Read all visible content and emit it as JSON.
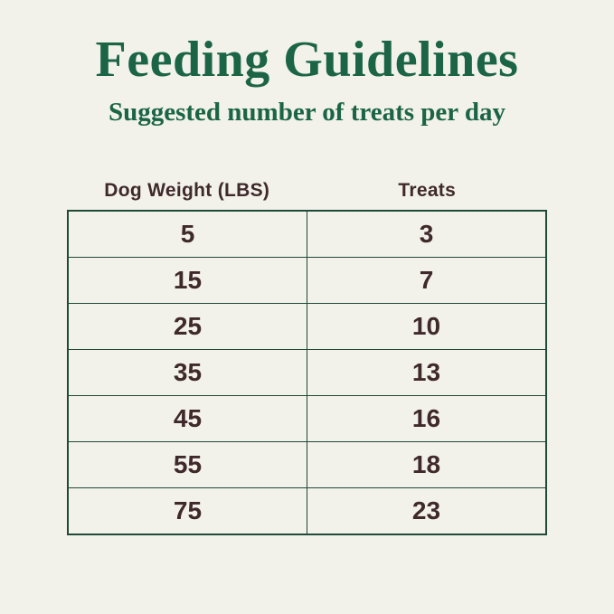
{
  "header": {
    "title": "Feeding Guidelines",
    "subtitle": "Suggested number of treats per day"
  },
  "table": {
    "columns": [
      "Dog Weight (LBS)",
      "Treats"
    ],
    "rows": [
      {
        "weight": "5",
        "treats": "3"
      },
      {
        "weight": "15",
        "treats": "7"
      },
      {
        "weight": "25",
        "treats": "10"
      },
      {
        "weight": "35",
        "treats": "13"
      },
      {
        "weight": "45",
        "treats": "16"
      },
      {
        "weight": "55",
        "treats": "18"
      },
      {
        "weight": "75",
        "treats": "23"
      }
    ]
  },
  "colors": {
    "background": "#F2F1EA",
    "heading_green": "#1B6546",
    "table_border_green": "#1F4A38",
    "text_brown": "#3F292B"
  }
}
